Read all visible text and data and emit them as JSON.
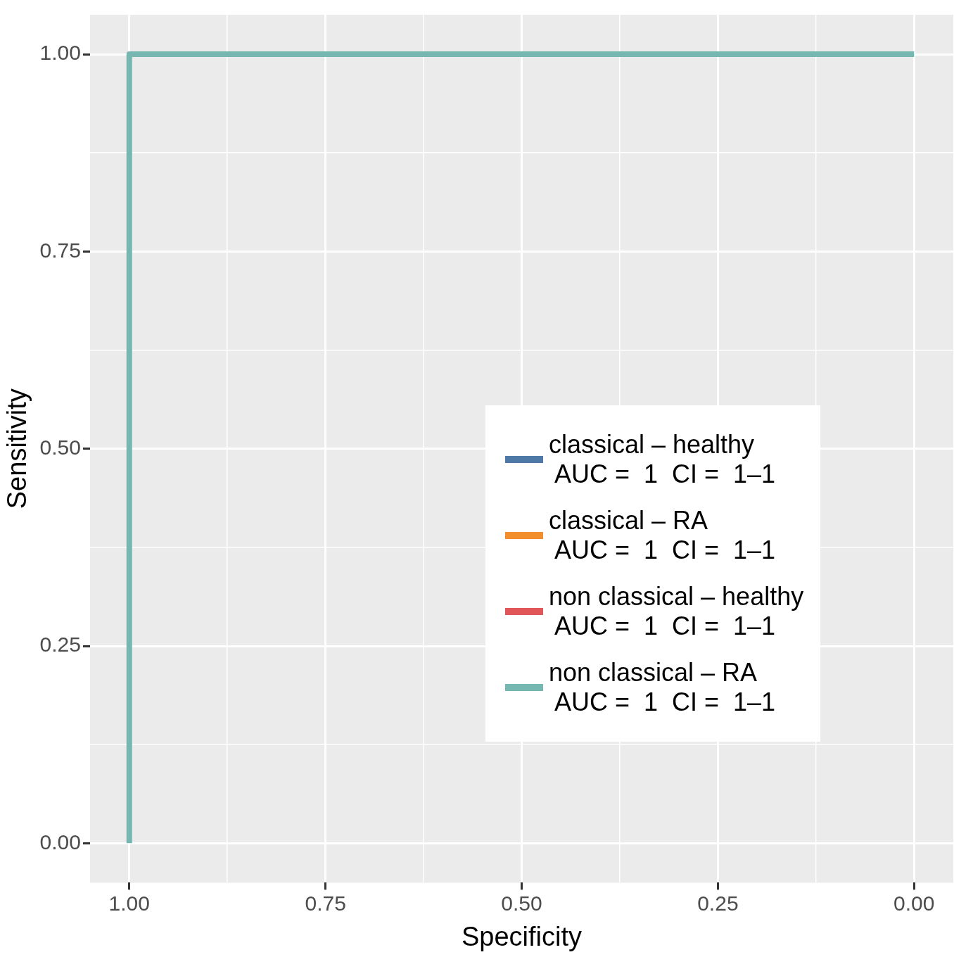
{
  "chart_data": {
    "type": "step",
    "xlabel": "Specificity",
    "ylabel": "Sensitivity",
    "series": [
      {
        "name": "classical – healthy\n AUC =  1  CI =  1–1",
        "color": "#4e79a7",
        "values": [
          null,
          null
        ]
      },
      {
        "name": "classical – RA\n AUC =  1  CI =  1–1",
        "color": "#f28e2b",
        "values": [
          null,
          null
        ]
      },
      {
        "name": "non classical – healthy\n AUC =  1  CI =  1–1",
        "color": "#e15759",
        "values": [
          null,
          null
        ]
      },
      {
        "name": "non classical – RA\n AUC =  1  CI =  1–1",
        "color": "#76b7b2",
        "x": [
          1,
          0
        ],
        "values": [
          0,
          1
        ]
      }
    ],
    "xlim": [
      1.05,
      -0.05
    ],
    "ylim": [
      -0.05,
      1.05
    ],
    "xticks": [
      {
        "value": 1,
        "label": "1.00"
      },
      {
        "value": 0.875,
        "label": null
      },
      {
        "value": 0.75,
        "label": "0.75"
      },
      {
        "value": 0.625,
        "label": null
      },
      {
        "value": 0.5,
        "label": "0.50"
      },
      {
        "value": 0.375,
        "label": null
      },
      {
        "value": 0.25,
        "label": "0.25"
      },
      {
        "value": 0.125,
        "label": null
      },
      {
        "value": 0,
        "label": "0.00"
      }
    ],
    "yticks": [
      {
        "value": 0,
        "label": "0.00"
      },
      {
        "value": 0.125,
        "label": null
      },
      {
        "value": 0.25,
        "label": "0.25"
      },
      {
        "value": 0.375,
        "label": null
      },
      {
        "value": 0.5,
        "label": "0.50"
      },
      {
        "value": 0.625,
        "label": null
      },
      {
        "value": 0.75,
        "label": "0.75"
      },
      {
        "value": 0.875,
        "label": null
      },
      {
        "value": 1,
        "label": "1.00"
      }
    ],
    "grid": true,
    "legend": "right",
    "marker": "none",
    "line_style": "solid"
  }
}
